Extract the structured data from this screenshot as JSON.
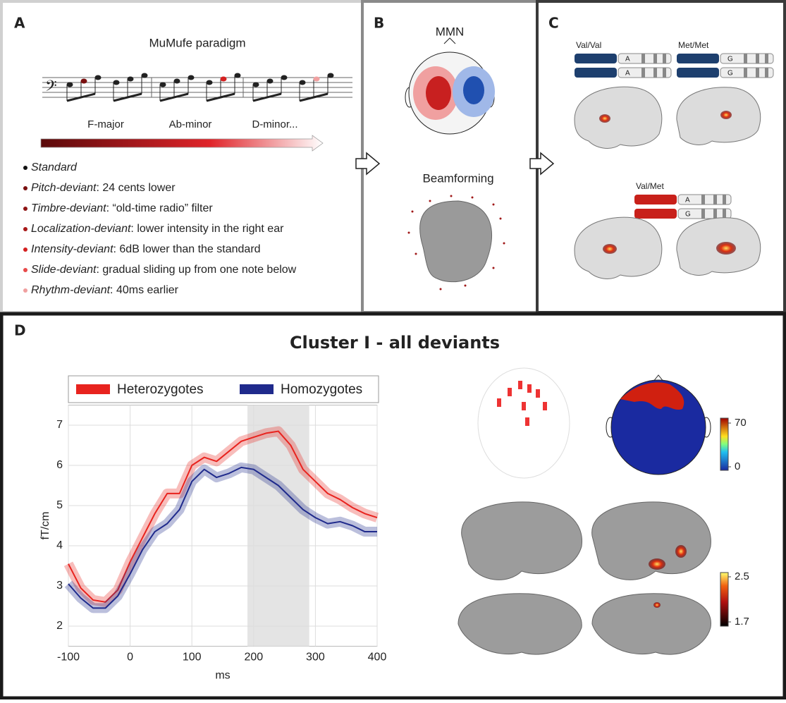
{
  "panels": {
    "A": {
      "label": "A",
      "title": "MuMufe paradigm",
      "keys": [
        "F-major",
        "Ab-minor",
        "D-minor..."
      ],
      "items": [
        {
          "name": "Standard",
          "color": "#111111"
        },
        {
          "name": "Pitch-deviant",
          "text": ": 24 cents lower",
          "color": "#7a1010"
        },
        {
          "name": "Timbre-deviant",
          "text": ": “old-time radio” filter",
          "color": "#8e1414"
        },
        {
          "name": "Localization-deviant",
          "text": ": lower intensity in the right ear",
          "color": "#a81818"
        },
        {
          "name": "Intensity-deviant",
          "text": ": 6dB lower than the standard",
          "color": "#d42020"
        },
        {
          "name": "Slide-deviant",
          "text": ": gradual sliding up from one note below",
          "color": "#e84a4a"
        },
        {
          "name": "Rhythm-deviant",
          "text": ": 40ms earlier",
          "color": "#f0a0a0"
        }
      ]
    },
    "B": {
      "label": "B",
      "top": "MMN",
      "bottom": "Beamforming"
    },
    "C": {
      "label": "C",
      "genotypes": [
        {
          "label": "Val/Val",
          "alleles": [
            "A",
            "A"
          ],
          "color": "#1d3f6e"
        },
        {
          "label": "Met/Met",
          "alleles": [
            "G",
            "G"
          ],
          "color": "#1d3f6e"
        },
        {
          "label": "Val/Met",
          "alleles": [
            "A",
            "G"
          ],
          "color": "#c8201a"
        }
      ]
    },
    "D": {
      "label": "D",
      "title": "Cluster I - all deviants",
      "topo_colorbar": {
        "lim": [
          0,
          70
        ],
        "ticks": [
          0,
          70
        ]
      },
      "brain_colorbar": {
        "lim": [
          1.7,
          2.5
        ],
        "ticks": [
          1.7,
          2.5
        ]
      }
    }
  },
  "chart_data": {
    "type": "line",
    "x": [
      -100,
      -80,
      -60,
      -40,
      -20,
      0,
      20,
      40,
      60,
      80,
      100,
      120,
      140,
      160,
      180,
      200,
      220,
      240,
      260,
      280,
      300,
      320,
      340,
      360,
      380,
      400
    ],
    "series": [
      {
        "name": "Heterozygotes",
        "color": "#e8231e",
        "values": [
          3.55,
          2.95,
          2.65,
          2.6,
          2.9,
          3.6,
          4.2,
          4.8,
          5.3,
          5.3,
          6.0,
          6.2,
          6.1,
          6.35,
          6.6,
          6.7,
          6.8,
          6.85,
          6.5,
          5.9,
          5.6,
          5.3,
          5.15,
          4.95,
          4.8,
          4.7
        ]
      },
      {
        "name": "Homozygotes",
        "color": "#1f2a8c",
        "values": [
          3.05,
          2.7,
          2.45,
          2.45,
          2.75,
          3.3,
          3.9,
          4.35,
          4.55,
          4.9,
          5.6,
          5.9,
          5.7,
          5.8,
          5.95,
          5.9,
          5.7,
          5.5,
          5.2,
          4.9,
          4.7,
          4.55,
          4.6,
          4.5,
          4.35,
          4.35
        ]
      }
    ],
    "shaded_span": [
      190,
      290
    ],
    "xlim": [
      -100,
      400
    ],
    "ylim": [
      1.5,
      7.5
    ],
    "xticks": [
      -100,
      0,
      100,
      200,
      300,
      400
    ],
    "yticks": [
      2,
      3,
      4,
      5,
      6,
      7
    ],
    "xlabel": "ms",
    "ylabel": "fT/cm",
    "grid": true
  }
}
